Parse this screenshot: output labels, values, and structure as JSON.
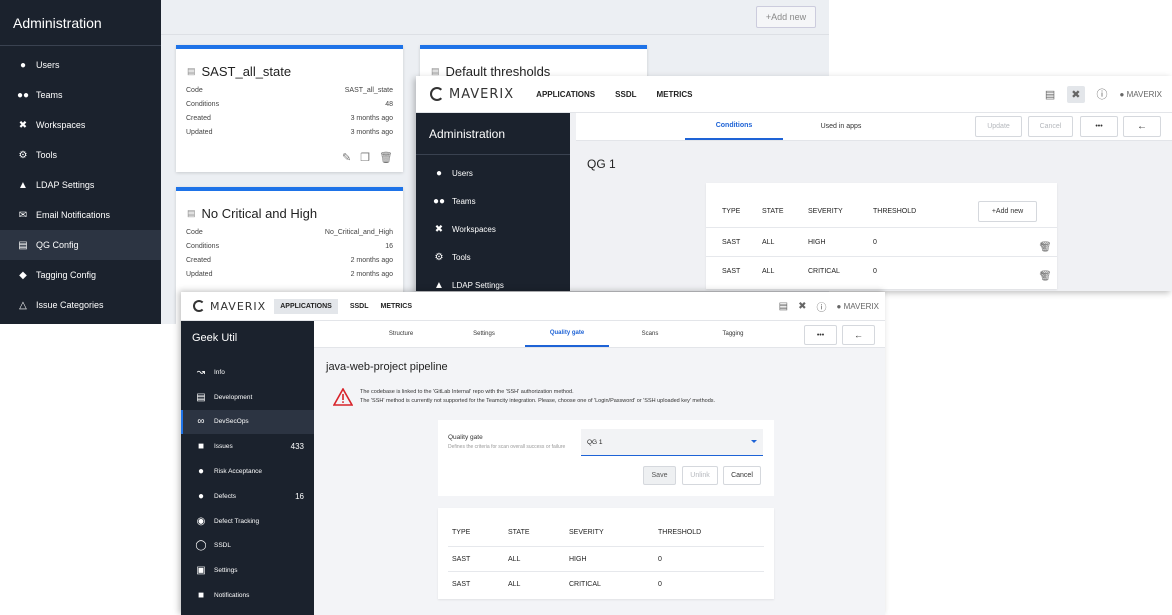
{
  "admin_window": {
    "title": "Administration",
    "add_new": "+Add new",
    "menu": [
      {
        "label": "Users",
        "icon": "user-icon"
      },
      {
        "label": "Teams",
        "icon": "team-icon"
      },
      {
        "label": "Workspaces",
        "icon": "workspace-tools-icon"
      },
      {
        "label": "Tools",
        "icon": "tools-gear-icon"
      },
      {
        "label": "LDAP Settings",
        "icon": "ldap-icon"
      },
      {
        "label": "Email Notifications",
        "icon": "mail-icon"
      },
      {
        "label": "QG Config",
        "icon": "qg-icon",
        "active": true
      },
      {
        "label": "Tagging Config",
        "icon": "tag-icon"
      },
      {
        "label": "Issue Categories",
        "icon": "warning-icon"
      }
    ],
    "cards": [
      {
        "title": "SAST_all_state",
        "rows": [
          {
            "k": "Code",
            "v": "SAST_all_state"
          },
          {
            "k": "Conditions",
            "v": "48"
          },
          {
            "k": "Created",
            "v": "3 months ago"
          },
          {
            "k": "Updated",
            "v": "3 months ago"
          }
        ]
      },
      {
        "title": "No Critical and High",
        "rows": [
          {
            "k": "Code",
            "v": "No_Critical_and_High"
          },
          {
            "k": "Conditions",
            "v": "16"
          },
          {
            "k": "Created",
            "v": "2 months ago"
          },
          {
            "k": "Updated",
            "v": "2 months ago"
          }
        ]
      },
      {
        "title": "Default thresholds"
      }
    ]
  },
  "qg_window": {
    "brand": "MAVERIX",
    "nav": [
      "APPLICATIONS",
      "SSDL",
      "METRICS"
    ],
    "user": "MAVERIX",
    "sidebar_title": "Administration",
    "menu": [
      "Users",
      "Teams",
      "Workspaces",
      "Tools",
      "LDAP Settings"
    ],
    "tabs": [
      "Conditions",
      "Used in apps"
    ],
    "buttons": {
      "update": "Update",
      "cancel": "Cancel",
      "more": "•••",
      "back": "←"
    },
    "qg_name": "QG 1",
    "add_new": "+Add new",
    "table": {
      "headers": [
        "TYPE",
        "STATE",
        "SEVERITY",
        "THRESHOLD"
      ],
      "rows": [
        [
          "SAST",
          "ALL",
          "HIGH",
          "0"
        ],
        [
          "SAST",
          "ALL",
          "CRITICAL",
          "0"
        ]
      ]
    }
  },
  "app_window": {
    "brand": "MAVERIX",
    "nav": [
      "APPLICATIONS",
      "SSDL",
      "METRICS"
    ],
    "user": "MAVERIX",
    "sidebar_title": "Geek Util",
    "menu": [
      {
        "label": "Info",
        "icon": "chart-icon"
      },
      {
        "label": "Development",
        "icon": "code-icon"
      },
      {
        "label": "DevSecOps",
        "icon": "infinity-icon",
        "active": true
      },
      {
        "label": "Issues",
        "icon": "bug-icon",
        "count": "433"
      },
      {
        "label": "Risk Acceptance",
        "icon": "risk-icon"
      },
      {
        "label": "Defects",
        "icon": "defect-icon",
        "count": "16"
      },
      {
        "label": "Defect Tracking",
        "icon": "tracking-icon"
      },
      {
        "label": "SSDL",
        "icon": "shield-icon"
      },
      {
        "label": "Settings",
        "icon": "settings-icon"
      },
      {
        "label": "Notifications",
        "icon": "bell-icon"
      }
    ],
    "tabs": [
      "Structure",
      "Settings",
      "Quality gate",
      "Scans",
      "Tagging"
    ],
    "active_tab": "Quality gate",
    "buttons": {
      "more": "•••",
      "back": "←"
    },
    "pipeline_title": "java-web-project pipeline",
    "warning": {
      "line1": "The codebase is linked to the 'GitLab Internal' repo with the 'SSH' authorization method.",
      "line2": "The 'SSH' method is currently not supported for the Teamcity integration. Please, choose one of 'Login/Password' or 'SSH uploaded key' methods."
    },
    "gate": {
      "label": "Quality gate",
      "description": "Defines the criteria for scan overall success or failure",
      "selected": "QG 1",
      "save": "Save",
      "unlink": "Unlink",
      "cancel": "Cancel"
    },
    "table": {
      "headers": [
        "TYPE",
        "STATE",
        "SEVERITY",
        "THRESHOLD"
      ],
      "rows": [
        [
          "SAST",
          "ALL",
          "HIGH",
          "0"
        ],
        [
          "SAST",
          "ALL",
          "CRITICAL",
          "0"
        ]
      ]
    }
  },
  "colors": {
    "sidebar": "#1b222d",
    "accent": "#1e73e8",
    "link_active": "#1e63d6",
    "warning": "#d8232a"
  }
}
